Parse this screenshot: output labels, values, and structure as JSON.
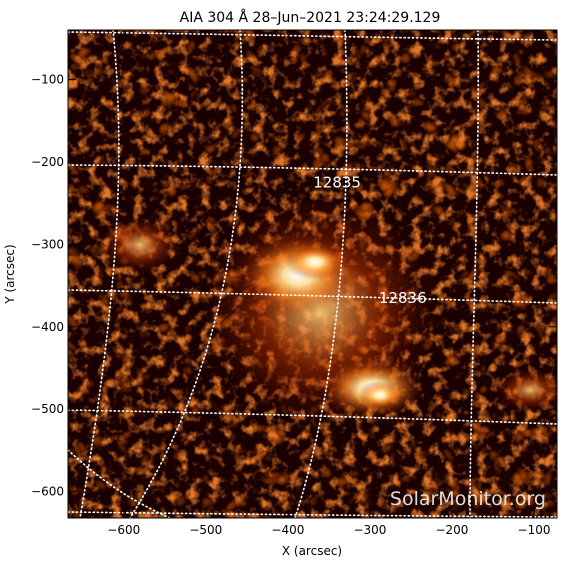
{
  "title": "AIA 304 Å 28–Jun–2021  23:24:29.129",
  "xlabel": "X (arcsec)",
  "ylabel": "Y (arcsec)",
  "x_ticks": [
    -600,
    -500,
    -400,
    -300,
    -200,
    -100
  ],
  "x_tick_labels": [
    "−600",
    "−500",
    "−400",
    "−300",
    "−200",
    "−100"
  ],
  "y_ticks": [
    -100,
    -200,
    -300,
    -400,
    -500,
    -600
  ],
  "y_tick_labels": [
    "−100",
    "−200",
    "−300",
    "−400",
    "−500",
    "−600"
  ],
  "x_range": [
    -668,
    -72
  ],
  "y_range": [
    -632,
    -40
  ],
  "active_regions": [
    {
      "label": "12835",
      "x": -340,
      "y": -225
    },
    {
      "label": "12836",
      "x": -260,
      "y": -365
    }
  ],
  "watermark": "SolarMonitor.org",
  "colors": {
    "image_dark": "#1a0000",
    "image_mid": "#8b1a00",
    "image_bright": "#ff8c1a",
    "image_hot": "#fff6d0",
    "grid": "#ffffff"
  }
}
